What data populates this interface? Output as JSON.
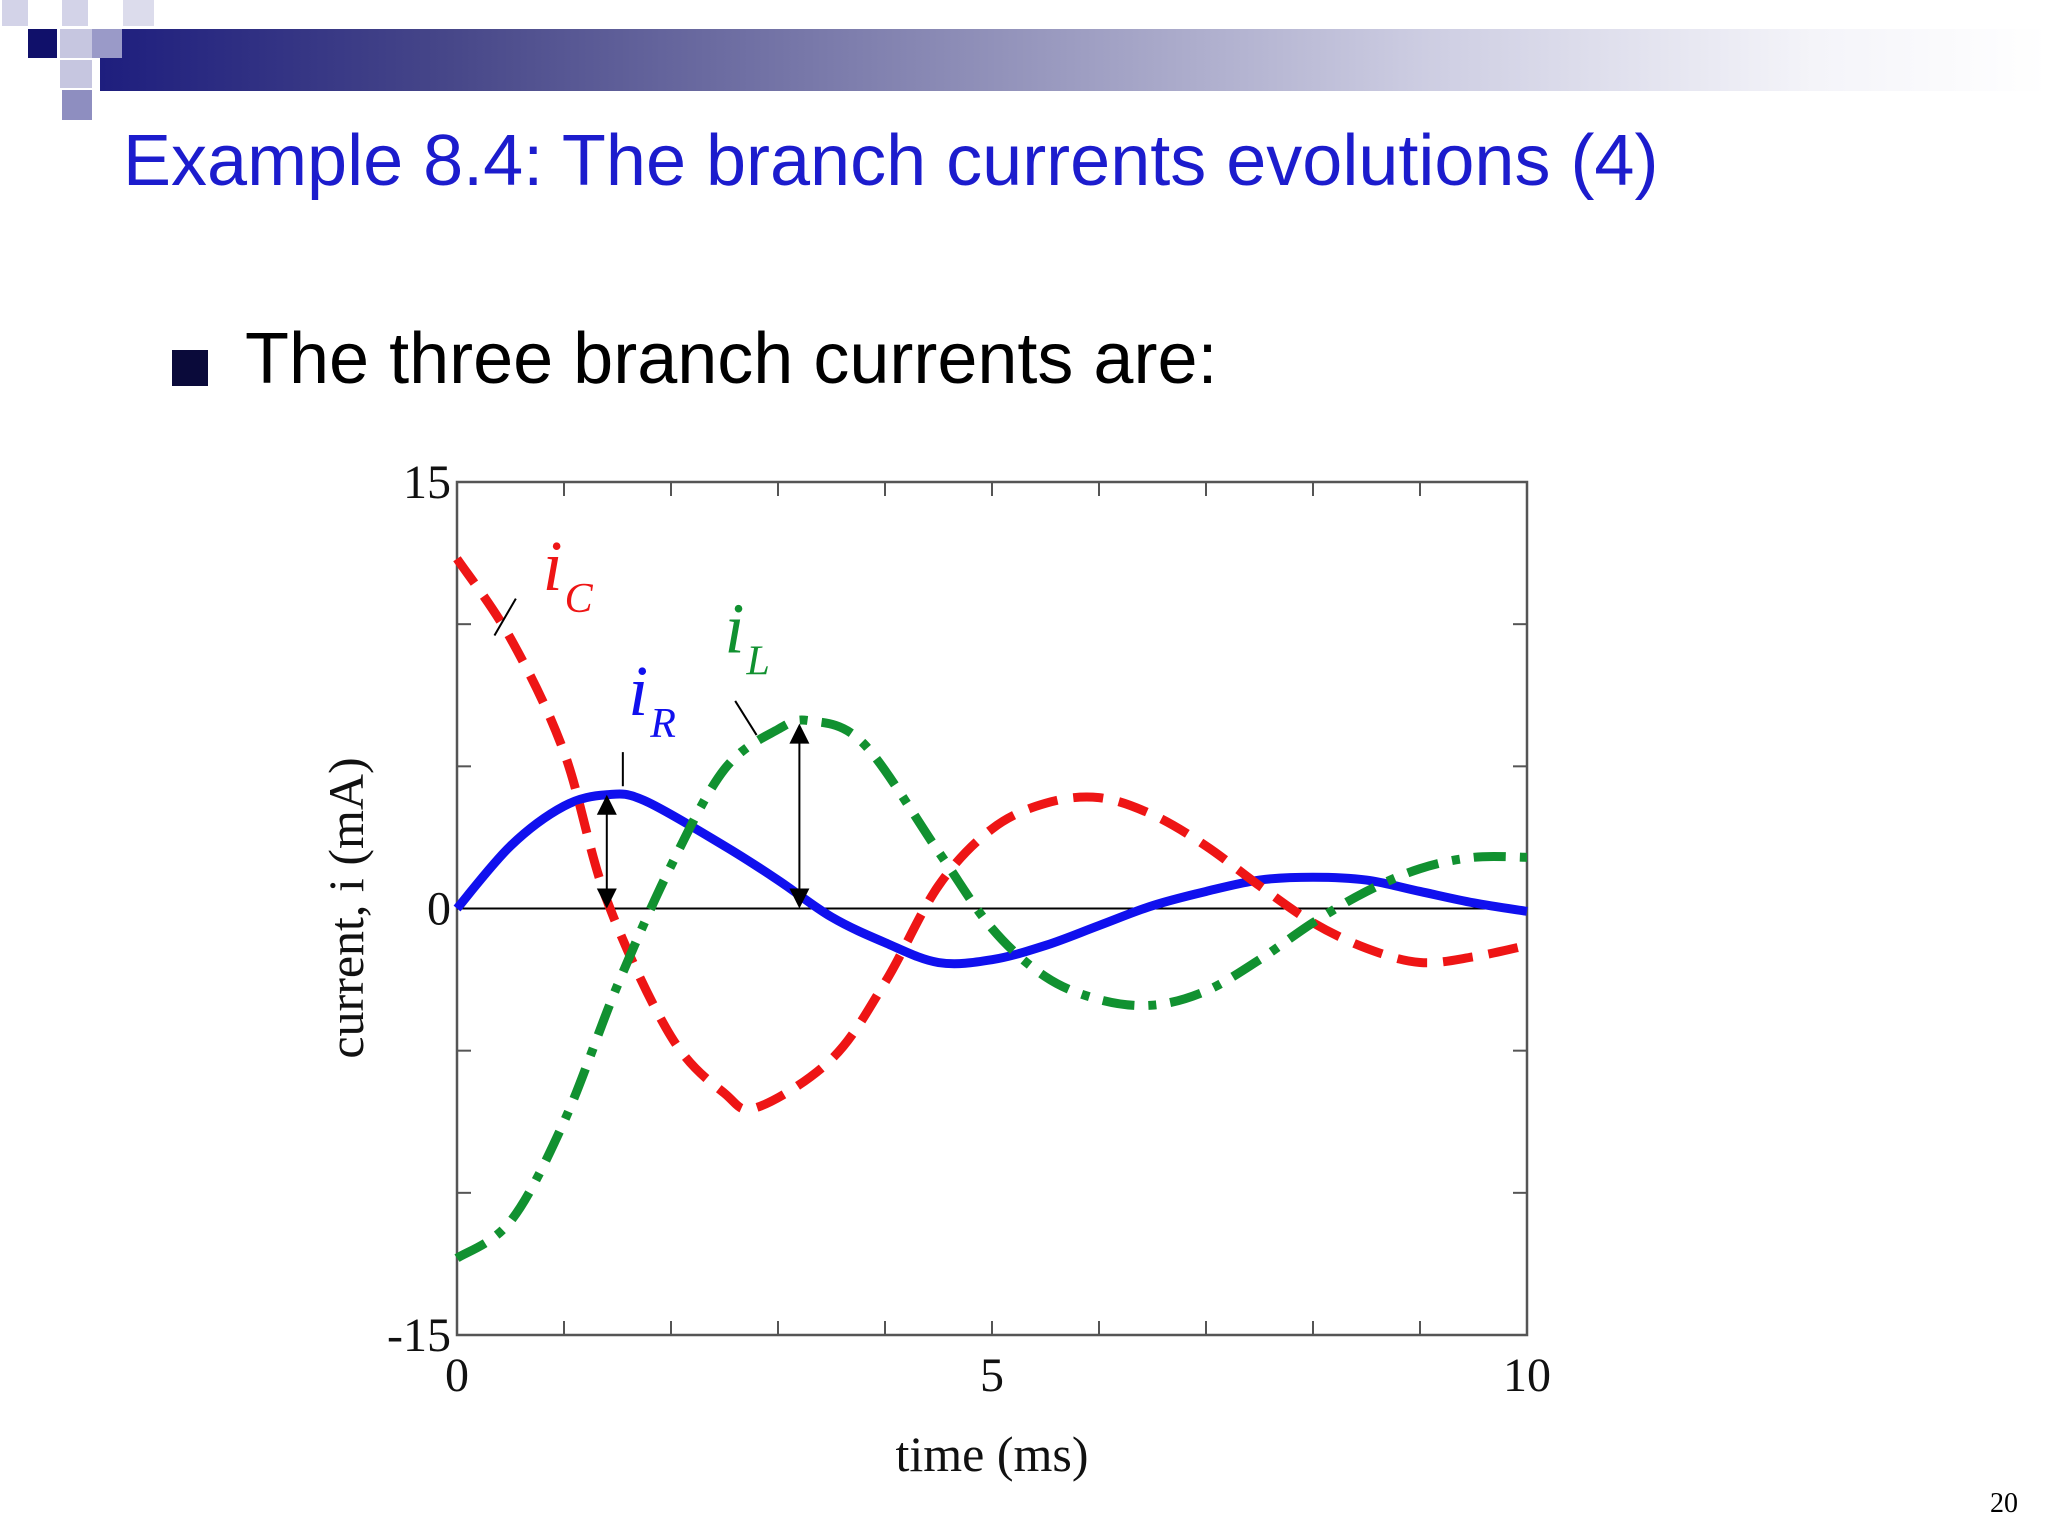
{
  "slide": {
    "title": "Example 8.4: The branch currents evolutions (4)",
    "bullet": "The three branch currents are:",
    "page_number": "20",
    "colors": {
      "title": "#1c1ccd",
      "header_dark": "#1e1e7e",
      "bullet": "#0a0a3a"
    }
  },
  "chart_data": {
    "type": "line",
    "title": "",
    "xlabel": "time (ms)",
    "ylabel": "current, i (mA)",
    "xlim": [
      0,
      10
    ],
    "ylim": [
      -15,
      15
    ],
    "xticks": [
      0,
      5,
      10
    ],
    "yticks": [
      -15,
      0,
      15
    ],
    "x_minor_step": 1,
    "y_minor_step": 5,
    "grid": false,
    "zero_line": true,
    "series": [
      {
        "name": "iR",
        "label_main": "i",
        "label_sub": "R",
        "color": "#1010ee",
        "style": "solid",
        "points": [
          [
            0,
            0
          ],
          [
            0.5,
            2.2
          ],
          [
            1,
            3.6
          ],
          [
            1.4,
            4.0
          ],
          [
            1.75,
            3.8
          ],
          [
            2.5,
            2.2
          ],
          [
            3,
            1.0
          ],
          [
            3.5,
            -0.3
          ],
          [
            4,
            -1.2
          ],
          [
            4.5,
            -1.9
          ],
          [
            5,
            -1.8
          ],
          [
            5.5,
            -1.3
          ],
          [
            6,
            -0.6
          ],
          [
            6.5,
            0.1
          ],
          [
            7,
            0.6
          ],
          [
            7.5,
            1.0
          ],
          [
            8,
            1.1
          ],
          [
            8.5,
            1.0
          ],
          [
            9,
            0.6
          ],
          [
            9.5,
            0.2
          ],
          [
            10,
            -0.1
          ]
        ]
      },
      {
        "name": "iC",
        "label_main": "i",
        "label_sub": "C",
        "color": "#ee1515",
        "style": "dashed",
        "points": [
          [
            0,
            12.3
          ],
          [
            0.5,
            9.5
          ],
          [
            1,
            5.5
          ],
          [
            1.4,
            0.3
          ],
          [
            2,
            -4.5
          ],
          [
            2.5,
            -6.5
          ],
          [
            2.8,
            -7.0
          ],
          [
            3.5,
            -5.3
          ],
          [
            4,
            -2.6
          ],
          [
            4.5,
            0.8
          ],
          [
            5,
            2.8
          ],
          [
            5.5,
            3.7
          ],
          [
            6,
            3.9
          ],
          [
            6.5,
            3.3
          ],
          [
            7,
            2.2
          ],
          [
            7.5,
            0.8
          ],
          [
            8,
            -0.5
          ],
          [
            8.5,
            -1.4
          ],
          [
            9,
            -1.9
          ],
          [
            9.5,
            -1.7
          ],
          [
            10,
            -1.3
          ]
        ]
      },
      {
        "name": "iL",
        "label_main": "i",
        "label_sub": "L",
        "color": "#119130",
        "style": "dashdot",
        "points": [
          [
            0,
            -12.3
          ],
          [
            0.5,
            -11.0
          ],
          [
            1,
            -7.5
          ],
          [
            1.5,
            -2.7
          ],
          [
            2,
            1.5
          ],
          [
            2.5,
            4.9
          ],
          [
            3,
            6.3
          ],
          [
            3.3,
            6.6
          ],
          [
            3.8,
            5.8
          ],
          [
            4.5,
            2.0
          ],
          [
            5,
            -0.7
          ],
          [
            5.5,
            -2.4
          ],
          [
            6,
            -3.2
          ],
          [
            6.5,
            -3.4
          ],
          [
            7,
            -2.9
          ],
          [
            7.5,
            -1.8
          ],
          [
            8,
            -0.5
          ],
          [
            8.5,
            0.6
          ],
          [
            9,
            1.4
          ],
          [
            9.5,
            1.8
          ],
          [
            10,
            1.8
          ]
        ]
      }
    ],
    "annotation_arrows": [
      {
        "x": 1.4,
        "y_from": 0,
        "y_to": 4.0
      },
      {
        "x": 3.2,
        "y_from": 0,
        "y_to": 6.5
      }
    ],
    "series_label_positions": [
      {
        "series": "iC",
        "x": 0.8,
        "y": 11.2
      },
      {
        "series": "iR",
        "x": 1.6,
        "y": 6.8
      },
      {
        "series": "iL",
        "x": 2.5,
        "y": 9.0
      }
    ],
    "leader_lines": [
      {
        "series": "iC",
        "from": [
          0.55,
          10.9
        ],
        "to": [
          0.35,
          9.6
        ]
      },
      {
        "series": "iR",
        "from": [
          1.55,
          5.5
        ],
        "to": [
          1.55,
          4.3
        ]
      },
      {
        "series": "iL",
        "from": [
          2.6,
          7.3
        ],
        "to": [
          2.8,
          6.1
        ]
      }
    ]
  }
}
